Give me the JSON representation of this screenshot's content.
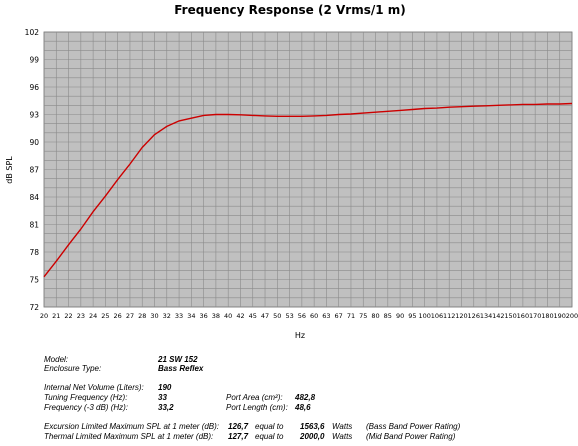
{
  "chart_data": {
    "type": "line",
    "title": "Frequency Response (2 Vrms/1 m)",
    "xlabel": "Hz",
    "ylabel": "dB SPL",
    "ylim": [
      72,
      102
    ],
    "yticks": [
      "102",
      "99",
      "96",
      "93",
      "90",
      "87",
      "84",
      "81",
      "78",
      "75",
      "72"
    ],
    "xticks": [
      "20",
      "21",
      "22",
      "23",
      "24",
      "25",
      "26",
      "27",
      "28",
      "30",
      "32",
      "33",
      "34",
      "36",
      "38",
      "40",
      "42",
      "45",
      "47",
      "50",
      "53",
      "56",
      "60",
      "63",
      "67",
      "71",
      "75",
      "80",
      "85",
      "90",
      "95",
      "100",
      "106",
      "112",
      "120",
      "126",
      "134",
      "142",
      "150",
      "160",
      "170",
      "180",
      "190",
      "200"
    ],
    "grid": true,
    "line_color": "#cc0000",
    "series": [
      {
        "x": [
          20,
          21,
          22,
          23,
          24,
          25,
          26,
          27,
          28,
          30,
          32,
          33,
          34,
          36,
          38,
          40,
          42,
          45,
          47,
          50,
          53,
          56,
          60,
          63,
          67,
          71,
          75,
          80,
          85,
          90,
          95,
          100,
          106,
          112,
          120,
          126,
          134,
          142,
          150,
          160,
          170,
          180,
          190,
          200
        ],
        "values": [
          75.3,
          77.0,
          78.8,
          80.5,
          82.4,
          84.1,
          85.9,
          87.6,
          89.4,
          90.8,
          91.7,
          92.3,
          92.6,
          92.9,
          93.0,
          93.0,
          92.97,
          92.9,
          92.85,
          92.8,
          92.8,
          92.8,
          92.85,
          92.9,
          93.0,
          93.05,
          93.15,
          93.25,
          93.35,
          93.45,
          93.55,
          93.65,
          93.7,
          93.8,
          93.85,
          93.9,
          93.95,
          94.0,
          94.05,
          94.1,
          94.1,
          94.15,
          94.15,
          94.2
        ]
      }
    ]
  },
  "specs": {
    "model_label": "Model:",
    "model_value": "21 SW 152",
    "enclosure_label": "Enclosure Type:",
    "enclosure_value": "Bass Reflex",
    "volume_label": "Internal  Net Volume (Liters):",
    "volume_value": "190",
    "tuning_label": "Tuning Frequency (Hz):",
    "tuning_value": "33",
    "port_area_label": "Port Area (cm²):",
    "port_area_value": "482,8",
    "f3_label": "Frequency (-3 dB) (Hz):",
    "f3_value": "33,2",
    "port_length_label": "Port Length (cm):",
    "port_length_value": "48,6",
    "exc_label": "Excursion Limited Maximum SPL at 1 meter (dB):",
    "exc_value": "126,7",
    "exc_equal": "equal to",
    "exc_watts": "1563,6",
    "exc_unit": "Watts",
    "exc_note": "(Bass Band Power Rating)",
    "thermal_label": "Thermal Limited Maximum SPL at 1 meter (dB):",
    "thermal_value": "127,7",
    "thermal_equal": "equal to",
    "thermal_watts": "2000,0",
    "thermal_unit": "Watts",
    "thermal_note": "(Mid Band Power Rating)"
  }
}
